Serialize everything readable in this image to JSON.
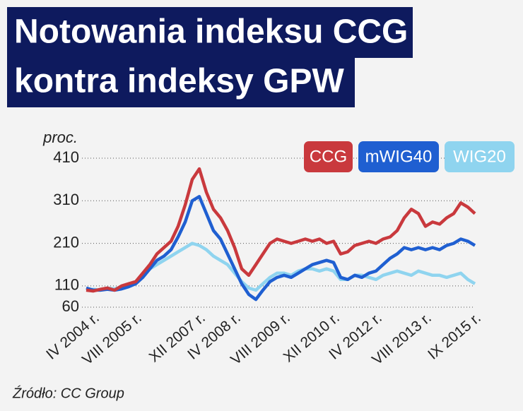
{
  "chart_data": {
    "type": "line",
    "title": [
      "Notowania indeksu CCG",
      "kontra indeksy GPW"
    ],
    "y_label": "proc.",
    "source": "Źródło: CC Group",
    "categories": [
      null,
      "IV 2004 r.",
      null,
      null,
      null,
      null,
      null,
      "VIII 2005 r.",
      null,
      null,
      null,
      null,
      null,
      null,
      null,
      null,
      "XII 2007 r.",
      null,
      null,
      null,
      null,
      "IV 2008 r.",
      null,
      null,
      null,
      null,
      null,
      null,
      "VIII 2009 r.",
      null,
      null,
      null,
      null,
      null,
      null,
      "XII 2010 r.",
      null,
      null,
      null,
      null,
      null,
      "IV 2012 r.",
      null,
      null,
      null,
      null,
      null,
      null,
      "VIII 2013 r.",
      null,
      null,
      null,
      null,
      null,
      null,
      "IX 2015 r."
    ],
    "series": [
      {
        "name": "CCG",
        "color": "#c9393d",
        "values": [
          100,
          98,
          102,
          105,
          100,
          110,
          115,
          120,
          140,
          160,
          185,
          200,
          215,
          250,
          300,
          360,
          385,
          330,
          290,
          270,
          240,
          200,
          150,
          135,
          160,
          185,
          210,
          220,
          215,
          210,
          215,
          220,
          215,
          220,
          210,
          215,
          185,
          190,
          205,
          210,
          215,
          210,
          220,
          225,
          240,
          270,
          290,
          280,
          250,
          260,
          255,
          270,
          280,
          305,
          295,
          280
        ]
      },
      {
        "name": "mWIG40",
        "color": "#1f5fd1",
        "values": [
          105,
          100,
          100,
          102,
          100,
          103,
          108,
          115,
          130,
          150,
          170,
          180,
          195,
          225,
          260,
          310,
          320,
          280,
          240,
          220,
          185,
          150,
          115,
          90,
          78,
          100,
          120,
          130,
          135,
          130,
          140,
          150,
          160,
          165,
          170,
          165,
          130,
          125,
          135,
          130,
          140,
          145,
          160,
          175,
          185,
          200,
          195,
          200,
          195,
          200,
          195,
          205,
          210,
          220,
          215,
          205
        ]
      },
      {
        "name": "WIG20",
        "color": "#8fd4ef",
        "values": [
          100,
          102,
          100,
          105,
          103,
          108,
          112,
          118,
          130,
          150,
          160,
          170,
          180,
          190,
          200,
          210,
          205,
          195,
          180,
          170,
          160,
          140,
          120,
          105,
          100,
          115,
          130,
          140,
          140,
          135,
          145,
          150,
          150,
          145,
          150,
          145,
          125,
          125,
          135,
          135,
          130,
          125,
          135,
          140,
          145,
          140,
          135,
          145,
          140,
          135,
          135,
          130,
          135,
          140,
          125,
          115
        ]
      }
    ],
    "ylim": [
      60,
      410
    ],
    "yticks": [
      60,
      110,
      210,
      310,
      410
    ],
    "grid": true,
    "legend": "top-right"
  }
}
